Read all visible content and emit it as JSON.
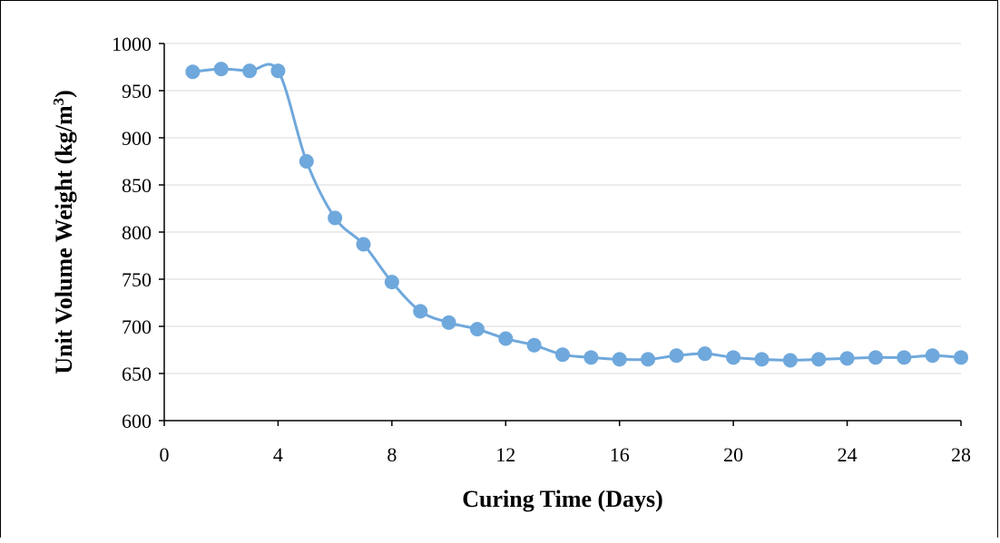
{
  "chart_data": {
    "type": "line",
    "smooth": true,
    "markers": true,
    "grid": true,
    "legend": "none",
    "xlabel": "Curing Time (Days)",
    "ylabel_main": "Unit Volume Weight (kg/m",
    "ylabel_sup": "3",
    "ylabel_close": ")",
    "xlim": [
      0,
      28
    ],
    "ylim": [
      600,
      1000
    ],
    "xticks": [
      0,
      4,
      8,
      12,
      16,
      20,
      24,
      28
    ],
    "yticks": [
      600,
      650,
      700,
      750,
      800,
      850,
      900,
      950,
      1000
    ],
    "series": [
      {
        "color": "#6FA8DC",
        "x": [
          1,
          2,
          3,
          4,
          5,
          6,
          7,
          8,
          9,
          10,
          11,
          12,
          13,
          14,
          15,
          16,
          17,
          18,
          19,
          20,
          21,
          22,
          23,
          24,
          25,
          26,
          27,
          28
        ],
        "y": [
          970,
          973,
          971,
          971,
          875,
          815,
          787,
          747,
          716,
          704,
          697,
          687,
          680,
          670,
          667,
          665,
          665,
          669,
          671,
          667,
          665,
          664,
          665,
          666,
          667,
          667,
          669,
          667
        ]
      }
    ]
  }
}
